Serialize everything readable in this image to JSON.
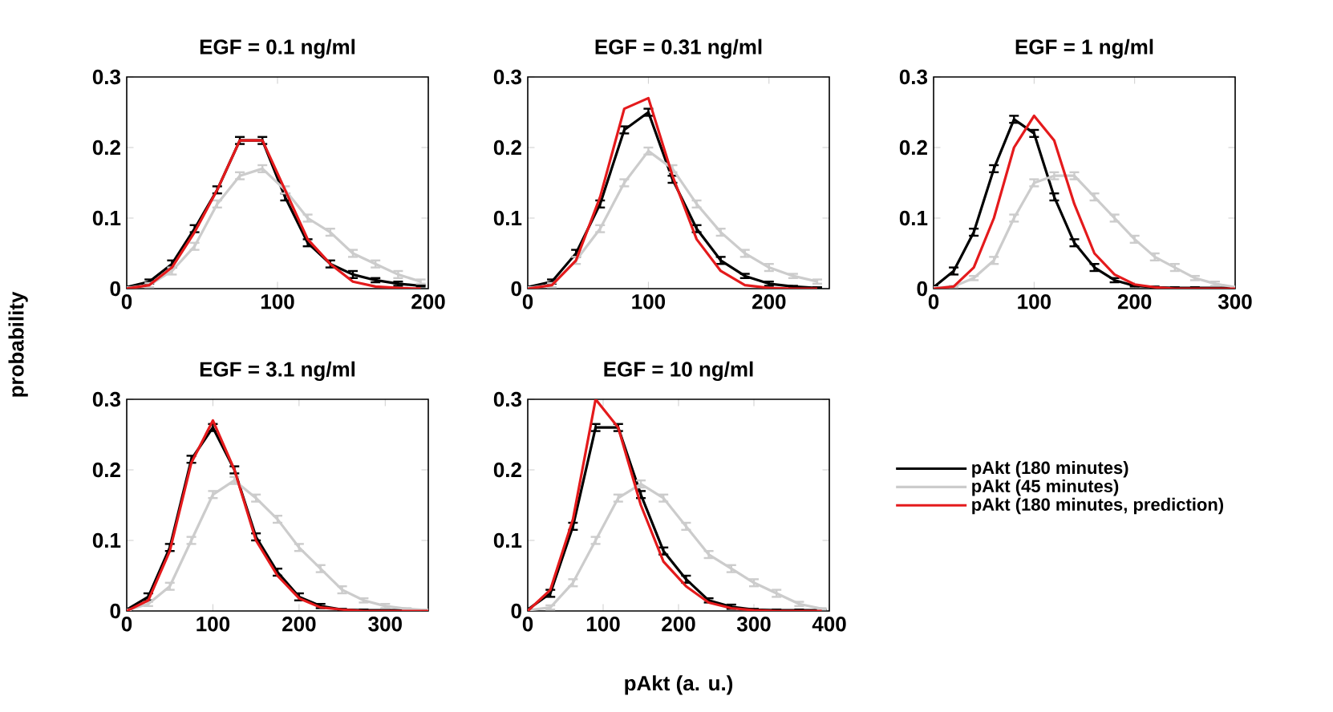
{
  "chart_data": [
    {
      "type": "line",
      "title": "EGF = 0.1 ng/ml",
      "ylabel": "probability",
      "x": [
        0,
        15,
        30,
        45,
        60,
        75,
        90,
        105,
        120,
        135,
        150,
        165,
        180,
        195
      ],
      "xlim": [
        0,
        200
      ],
      "xticks": [
        0,
        100,
        200
      ],
      "ylim": [
        0,
        0.3
      ],
      "yticks": [
        0,
        0.1,
        0.2,
        0.3
      ],
      "series": [
        {
          "color": "#000000",
          "values": [
            0.002,
            0.01,
            0.035,
            0.085,
            0.14,
            0.21,
            0.21,
            0.13,
            0.065,
            0.035,
            0.02,
            0.012,
            0.007,
            0.004
          ],
          "errors": [
            0.001,
            0.003,
            0.005,
            0.005,
            0.005,
            0.005,
            0.005,
            0.005,
            0.005,
            0.005,
            0.005,
            0.003,
            0.003,
            0.001
          ]
        },
        {
          "color": "#cccccc",
          "values": [
            0.001,
            0.005,
            0.025,
            0.06,
            0.12,
            0.16,
            0.17,
            0.14,
            0.1,
            0.08,
            0.05,
            0.035,
            0.02,
            0.01
          ],
          "errors": [
            0.001,
            0.003,
            0.005,
            0.005,
            0.005,
            0.005,
            0.005,
            0.005,
            0.005,
            0.005,
            0.005,
            0.005,
            0.005,
            0.003
          ]
        },
        {
          "color": "#e41a1c",
          "values": [
            0,
            0.005,
            0.03,
            0.08,
            0.14,
            0.21,
            0.21,
            0.14,
            0.07,
            0.035,
            0.01,
            0.003,
            0.001,
            0
          ]
        }
      ]
    },
    {
      "type": "line",
      "title": "EGF = 0.31 ng/ml",
      "x": [
        0,
        20,
        40,
        60,
        80,
        100,
        120,
        140,
        160,
        180,
        200,
        220,
        240
      ],
      "xlim": [
        0,
        250
      ],
      "xticks": [
        0,
        100,
        200
      ],
      "ylim": [
        0,
        0.3
      ],
      "yticks": [
        0,
        0.1,
        0.2,
        0.3
      ],
      "series": [
        {
          "color": "#000000",
          "values": [
            0.002,
            0.01,
            0.05,
            0.12,
            0.225,
            0.25,
            0.155,
            0.085,
            0.04,
            0.018,
            0.007,
            0.003,
            0.001
          ],
          "errors": [
            0.001,
            0.003,
            0.005,
            0.005,
            0.005,
            0.005,
            0.005,
            0.005,
            0.005,
            0.003,
            0.003,
            0.001,
            0.001
          ]
        },
        {
          "color": "#cccccc",
          "values": [
            0.001,
            0.005,
            0.04,
            0.085,
            0.15,
            0.195,
            0.17,
            0.12,
            0.08,
            0.05,
            0.03,
            0.018,
            0.01
          ],
          "errors": [
            0.001,
            0.003,
            0.005,
            0.005,
            0.005,
            0.005,
            0.005,
            0.005,
            0.005,
            0.005,
            0.005,
            0.003,
            0.003
          ]
        },
        {
          "color": "#e41a1c",
          "values": [
            0,
            0.005,
            0.04,
            0.13,
            0.255,
            0.27,
            0.16,
            0.07,
            0.025,
            0.005,
            0.001,
            0,
            0
          ]
        }
      ]
    },
    {
      "type": "line",
      "title": "EGF = 1 ng/ml",
      "x": [
        0,
        20,
        40,
        60,
        80,
        100,
        120,
        140,
        160,
        180,
        200,
        220,
        240,
        260,
        280,
        300
      ],
      "xlim": [
        0,
        300
      ],
      "xticks": [
        0,
        100,
        200,
        300
      ],
      "ylim": [
        0,
        0.3
      ],
      "yticks": [
        0,
        0.1,
        0.2,
        0.3
      ],
      "series": [
        {
          "color": "#000000",
          "values": [
            0.002,
            0.025,
            0.08,
            0.17,
            0.24,
            0.22,
            0.13,
            0.065,
            0.03,
            0.012,
            0.004,
            0.002,
            0.001,
            0.001,
            0.001,
            0.001
          ],
          "errors": [
            0.001,
            0.005,
            0.005,
            0.005,
            0.005,
            0.005,
            0.005,
            0.005,
            0.005,
            0.003,
            0.001,
            0.001,
            0.001,
            0.001,
            0.001,
            0.001
          ]
        },
        {
          "color": "#cccccc",
          "values": [
            0.001,
            0.003,
            0.015,
            0.04,
            0.1,
            0.15,
            0.16,
            0.16,
            0.13,
            0.1,
            0.07,
            0.045,
            0.03,
            0.015,
            0.007,
            0.002
          ],
          "errors": [
            0.001,
            0.001,
            0.003,
            0.005,
            0.005,
            0.005,
            0.005,
            0.005,
            0.005,
            0.005,
            0.005,
            0.005,
            0.005,
            0.003,
            0.003,
            0.001
          ]
        },
        {
          "color": "#e41a1c",
          "values": [
            0,
            0.003,
            0.03,
            0.1,
            0.2,
            0.245,
            0.21,
            0.12,
            0.05,
            0.02,
            0.006,
            0.002,
            0,
            0,
            0,
            0
          ]
        }
      ]
    },
    {
      "type": "line",
      "title": "EGF = 3.1 ng/ml",
      "x": [
        0,
        25,
        50,
        75,
        100,
        125,
        150,
        175,
        200,
        225,
        250,
        275,
        300,
        325,
        350
      ],
      "xlim": [
        0,
        350
      ],
      "xticks": [
        0,
        100,
        200,
        300
      ],
      "ylim": [
        0,
        0.3
      ],
      "yticks": [
        0,
        0.1,
        0.2,
        0.3
      ],
      "series": [
        {
          "color": "#000000",
          "values": [
            0.002,
            0.02,
            0.09,
            0.215,
            0.26,
            0.2,
            0.105,
            0.055,
            0.02,
            0.007,
            0.002,
            0.001,
            0.001,
            0.001,
            0.001
          ],
          "errors": [
            0.001,
            0.005,
            0.005,
            0.005,
            0.005,
            0.005,
            0.005,
            0.005,
            0.005,
            0.003,
            0.001,
            0.001,
            0.001,
            0.001,
            0.001
          ]
        },
        {
          "color": "#cccccc",
          "values": [
            0.001,
            0.01,
            0.035,
            0.1,
            0.165,
            0.185,
            0.16,
            0.13,
            0.09,
            0.06,
            0.03,
            0.015,
            0.007,
            0.003,
            0.001
          ],
          "errors": [
            0.001,
            0.003,
            0.005,
            0.005,
            0.005,
            0.005,
            0.005,
            0.005,
            0.005,
            0.005,
            0.005,
            0.003,
            0.003,
            0.001,
            0.001
          ]
        },
        {
          "color": "#e41a1c",
          "values": [
            0,
            0.015,
            0.085,
            0.21,
            0.27,
            0.2,
            0.1,
            0.05,
            0.018,
            0.005,
            0.002,
            0,
            0,
            0,
            0
          ]
        }
      ]
    },
    {
      "type": "line",
      "title": "EGF = 10 ng/ml",
      "xlabel": "pAkt (a. u.)",
      "legend": "right",
      "x": [
        0,
        30,
        60,
        90,
        120,
        150,
        180,
        210,
        240,
        270,
        300,
        330,
        360,
        390
      ],
      "xlim": [
        0,
        400
      ],
      "xticks": [
        0,
        100,
        200,
        300,
        400
      ],
      "ylim": [
        0,
        0.3
      ],
      "yticks": [
        0,
        0.1,
        0.2,
        0.3
      ],
      "series": [
        {
          "name": "pAkt (180 minutes)",
          "color": "#000000",
          "values": [
            0.002,
            0.025,
            0.12,
            0.26,
            0.26,
            0.165,
            0.085,
            0.045,
            0.015,
            0.006,
            0.002,
            0.001,
            0.001,
            0.001
          ],
          "errors": [
            0.001,
            0.005,
            0.005,
            0.005,
            0.005,
            0.005,
            0.005,
            0.005,
            0.003,
            0.003,
            0.001,
            0.001,
            0.001,
            0.001
          ]
        },
        {
          "name": "pAkt (45 minutes)",
          "color": "#cccccc",
          "values": [
            0.001,
            0.005,
            0.04,
            0.1,
            0.16,
            0.18,
            0.16,
            0.12,
            0.08,
            0.06,
            0.04,
            0.025,
            0.01,
            0.003
          ],
          "errors": [
            0.001,
            0.003,
            0.005,
            0.005,
            0.005,
            0.005,
            0.005,
            0.005,
            0.005,
            0.005,
            0.005,
            0.005,
            0.003,
            0.001
          ]
        },
        {
          "name": "pAkt (180 minutes, prediction)",
          "color": "#e41a1c",
          "values": [
            0,
            0.03,
            0.13,
            0.3,
            0.26,
            0.15,
            0.07,
            0.035,
            0.012,
            0.004,
            0.001,
            0,
            0,
            0
          ]
        }
      ]
    }
  ]
}
